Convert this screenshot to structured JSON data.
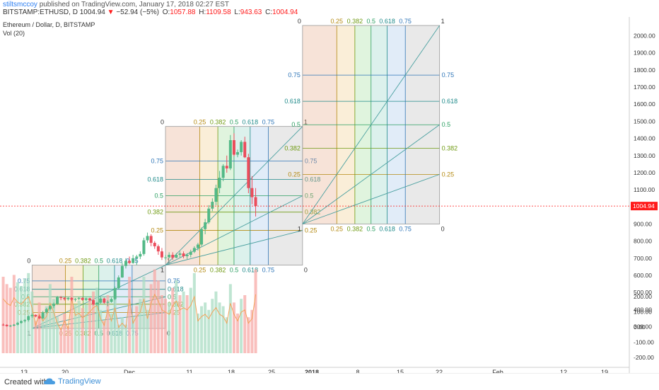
{
  "header": {
    "author": "stiltsmccoy",
    "published": "published on TradingView.com, January 17, 2018 02:27 EST",
    "symbol": "BITSTAMP:ETHUSD, D",
    "last": "1004.94",
    "change": "−52.94 (−5%)",
    "o_label": "O:",
    "o": "1057.88",
    "h_label": "H:",
    "h": "1109.58",
    "l_label": "L:",
    "l": "943.63",
    "c_label": "C:",
    "c": "1004.94"
  },
  "legend": {
    "title": "Ethereum / Dollar, D, BITSTAMP",
    "volume": "Vol (20)"
  },
  "footer": {
    "created_with": "Created with",
    "brand": "TradingView"
  },
  "colors": {
    "up": "#53b987",
    "down": "#eb4d5c",
    "up_vol": "#a9dcc3",
    "down_vol": "#f7a9a7",
    "axis_text": "#333333",
    "current_price_tag": "#ff1a1a"
  },
  "chart_data": {
    "type": "candlestick",
    "price_axis": {
      "ticks": [
        "2000.00",
        "1900.00",
        "1800.00",
        "1700.00",
        "1600.00",
        "1500.00",
        "1400.00",
        "1300.00",
        "1200.00",
        "1100.00",
        "1000.00",
        "900.00",
        "800.00",
        "700.00",
        "600.00",
        "500.00",
        "400.00",
        "300.00"
      ],
      "range": [
        290,
        2060
      ],
      "current_price": "1004.94"
    },
    "volume_axis": {
      "ticks": [
        "200.00",
        "100.00",
        "0.00",
        "-100.00",
        "-200.00"
      ]
    },
    "x_axis": {
      "ticks": [
        "13",
        "20",
        "Dec",
        "11",
        "18",
        "25",
        "2018",
        "8",
        "15",
        "22",
        "Feb",
        "12",
        "19"
      ]
    },
    "candles": [
      [
        312,
        319,
        305,
        311
      ],
      [
        311,
        314,
        301,
        303
      ],
      [
        303,
        311,
        298,
        306
      ],
      [
        306,
        316,
        303,
        312
      ],
      [
        312,
        328,
        308,
        322
      ],
      [
        322,
        337,
        318,
        333
      ],
      [
        333,
        344,
        325,
        339
      ],
      [
        339,
        366,
        330,
        362
      ],
      [
        362,
        378,
        352,
        369
      ],
      [
        369,
        372,
        355,
        360
      ],
      [
        360,
        368,
        345,
        349
      ],
      [
        349,
        392,
        345,
        384
      ],
      [
        384,
        410,
        376,
        403
      ],
      [
        403,
        428,
        395,
        421
      ],
      [
        421,
        441,
        408,
        434
      ],
      [
        434,
        480,
        427,
        472
      ],
      [
        472,
        479,
        455,
        469
      ],
      [
        469,
        472,
        453,
        461
      ],
      [
        461,
        472,
        453,
        468
      ],
      [
        468,
        472,
        450,
        458
      ],
      [
        458,
        468,
        447,
        463
      ],
      [
        463,
        472,
        455,
        468
      ],
      [
        468,
        471,
        452,
        457
      ],
      [
        457,
        470,
        448,
        466
      ],
      [
        466,
        469,
        450,
        455
      ],
      [
        455,
        460,
        425,
        430
      ],
      [
        430,
        445,
        420,
        440
      ],
      [
        440,
        472,
        435,
        465
      ],
      [
        465,
        470,
        435,
        440
      ],
      [
        440,
        455,
        420,
        445
      ],
      [
        445,
        470,
        440,
        462
      ],
      [
        462,
        535,
        455,
        525
      ],
      [
        525,
        600,
        520,
        588
      ],
      [
        588,
        675,
        585,
        655
      ],
      [
        655,
        700,
        640,
        685
      ],
      [
        685,
        710,
        665,
        672
      ],
      [
        672,
        720,
        668,
        700
      ],
      [
        700,
        720,
        660,
        710
      ],
      [
        710,
        740,
        695,
        725
      ],
      [
        725,
        820,
        715,
        805
      ],
      [
        805,
        850,
        790,
        830
      ],
      [
        830,
        840,
        770,
        790
      ],
      [
        790,
        800,
        755,
        770
      ],
      [
        770,
        780,
        720,
        740
      ],
      [
        740,
        760,
        690,
        705
      ],
      [
        705,
        720,
        690,
        705
      ],
      [
        705,
        735,
        700,
        720
      ],
      [
        720,
        735,
        690,
        703
      ],
      [
        703,
        730,
        700,
        720
      ],
      [
        720,
        740,
        705,
        728
      ],
      [
        728,
        740,
        700,
        712
      ],
      [
        712,
        730,
        695,
        720
      ],
      [
        720,
        750,
        705,
        738
      ],
      [
        738,
        770,
        730,
        760
      ],
      [
        760,
        790,
        745,
        780
      ],
      [
        780,
        880,
        770,
        870
      ],
      [
        870,
        930,
        840,
        910
      ],
      [
        910,
        1010,
        900,
        990
      ],
      [
        990,
        1050,
        975,
        1030
      ],
      [
        1030,
        1130,
        1010,
        1110
      ],
      [
        1110,
        1210,
        1080,
        1170
      ],
      [
        1170,
        1250,
        1150,
        1240
      ],
      [
        1240,
        1300,
        1200,
        1225
      ],
      [
        1225,
        1420,
        1215,
        1390
      ],
      [
        1390,
        1430,
        1295,
        1305
      ],
      [
        1305,
        1335,
        1290,
        1320
      ],
      [
        1320,
        1390,
        1300,
        1380
      ],
      [
        1380,
        1410,
        1285,
        1290
      ],
      [
        1290,
        1310,
        1080,
        1110
      ],
      [
        1110,
        1180,
        1015,
        1057
      ],
      [
        1057,
        1110,
        944,
        1005
      ]
    ],
    "volumes": [
      [
        -150,
        0
      ],
      [
        -130,
        0
      ],
      [
        -120,
        0
      ],
      [
        -155,
        0
      ],
      [
        -135,
        1
      ],
      [
        -125,
        1
      ],
      [
        -145,
        1
      ],
      [
        -160,
        1
      ],
      [
        -110,
        1
      ],
      [
        -30,
        0
      ],
      [
        -80,
        0
      ],
      [
        -50,
        1
      ],
      [
        -70,
        1
      ],
      [
        -130,
        1
      ],
      [
        -90,
        1
      ],
      [
        -40,
        1
      ],
      [
        -10,
        0
      ],
      [
        -50,
        0
      ],
      [
        -15,
        0
      ],
      [
        -150,
        0
      ],
      [
        -75,
        1
      ],
      [
        -85,
        1
      ],
      [
        -65,
        0
      ],
      [
        -75,
        1
      ],
      [
        -90,
        0
      ],
      [
        -110,
        0
      ],
      [
        -120,
        1
      ],
      [
        -60,
        1
      ],
      [
        -30,
        0
      ],
      [
        -100,
        0
      ],
      [
        -50,
        1
      ],
      [
        -110,
        1
      ],
      [
        -20,
        1
      ],
      [
        -40,
        1
      ],
      [
        -20,
        1
      ],
      [
        -150,
        0
      ],
      [
        -40,
        1
      ],
      [
        -70,
        0
      ],
      [
        -90,
        1
      ],
      [
        -150,
        1
      ],
      [
        -60,
        1
      ],
      [
        -130,
        0
      ],
      [
        -170,
        0
      ],
      [
        -140,
        0
      ],
      [
        -100,
        0
      ],
      [
        -90,
        0
      ],
      [
        -80,
        1
      ],
      [
        -120,
        0
      ],
      [
        -140,
        1
      ],
      [
        -100,
        0
      ],
      [
        -110,
        1
      ],
      [
        -100,
        0
      ],
      [
        -120,
        1
      ],
      [
        -160,
        1
      ],
      [
        -50,
        1
      ],
      [
        -70,
        1
      ],
      [
        -80,
        1
      ],
      [
        -60,
        1
      ],
      [
        -90,
        1
      ],
      [
        -110,
        1
      ],
      [
        -80,
        1
      ],
      [
        -70,
        1
      ],
      [
        -40,
        1
      ],
      [
        -130,
        1
      ],
      [
        -80,
        0
      ],
      [
        -50,
        0
      ],
      [
        -90,
        1
      ],
      [
        -100,
        0
      ],
      [
        -40,
        0
      ],
      [
        -60,
        0
      ],
      [
        -170,
        0
      ]
    ],
    "fib_boxes": [
      {
        "from_index": 8,
        "to_index": 45,
        "price_from": 290,
        "price_to": 660
      },
      {
        "from_index": 45,
        "to_index": 83,
        "price_from": 660,
        "price_to": 1470
      },
      {
        "from_index": 83,
        "to_index": 121,
        "price_from": 900,
        "price_to": 2060
      }
    ],
    "fib_levels": [
      "0.25",
      "0.382",
      "0.5",
      "0.618",
      "0.75"
    ],
    "fib_end_labels": [
      "0",
      "1"
    ]
  }
}
